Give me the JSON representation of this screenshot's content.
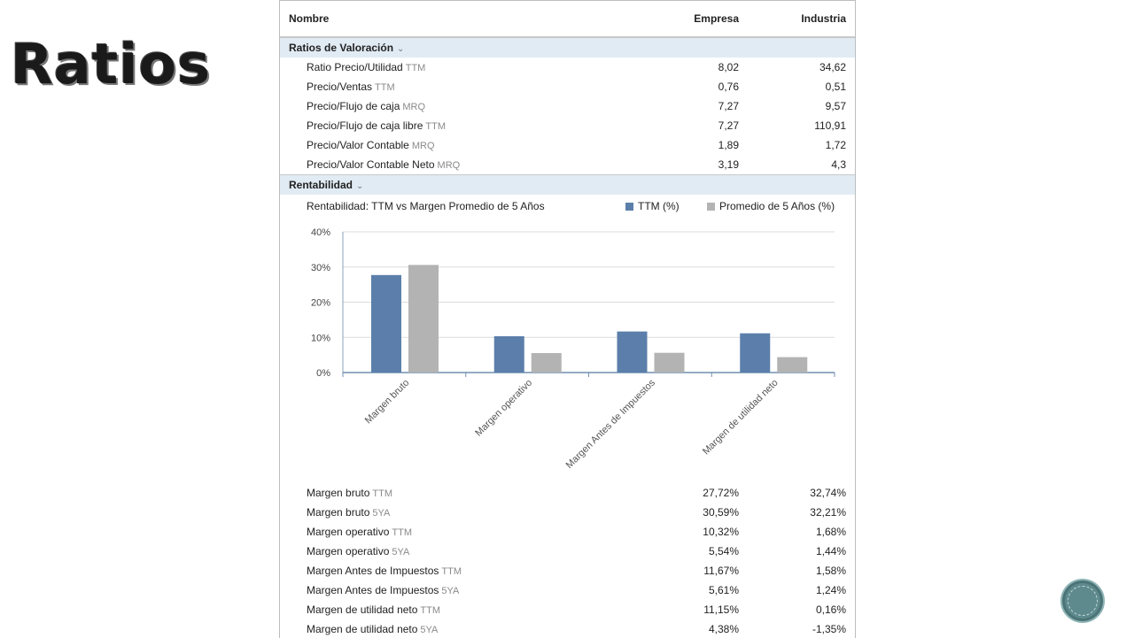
{
  "slide": {
    "title": "Ratios"
  },
  "header": {
    "name_col": "Nombre",
    "company_col": "Empresa",
    "industry_col": "Industria"
  },
  "valuation": {
    "title": "Ratios de Valoración",
    "rows": [
      {
        "label": "Ratio Precio/Utilidad",
        "suffix": "TTM",
        "company": "8,02",
        "industry": "34,62"
      },
      {
        "label": "Precio/Ventas",
        "suffix": "TTM",
        "company": "0,76",
        "industry": "0,51"
      },
      {
        "label": "Precio/Flujo de caja",
        "suffix": "MRQ",
        "company": "7,27",
        "industry": "9,57"
      },
      {
        "label": "Precio/Flujo de caja libre",
        "suffix": "TTM",
        "company": "7,27",
        "industry": "110,91"
      },
      {
        "label": "Precio/Valor Contable",
        "suffix": "MRQ",
        "company": "1,89",
        "industry": "1,72"
      },
      {
        "label": "Precio/Valor Contable Neto",
        "suffix": "MRQ",
        "company": "3,19",
        "industry": "4,3"
      }
    ]
  },
  "profitability": {
    "title": "Rentabilidad",
    "chart_title": "Rentabilidad: TTM vs Margen Promedio de 5 Años",
    "rows": [
      {
        "label": "Margen bruto",
        "suffix": "TTM",
        "company": "27,72%",
        "industry": "32,74%"
      },
      {
        "label": "Margen bruto",
        "suffix": "5YA",
        "company": "30,59%",
        "industry": "32,21%"
      },
      {
        "label": "Margen operativo",
        "suffix": "TTM",
        "company": "10,32%",
        "industry": "1,68%"
      },
      {
        "label": "Margen operativo",
        "suffix": "5YA",
        "company": "5,54%",
        "industry": "1,44%"
      },
      {
        "label": "Margen Antes de Impuestos",
        "suffix": "TTM",
        "company": "11,67%",
        "industry": "1,58%"
      },
      {
        "label": "Margen Antes de Impuestos",
        "suffix": "5YA",
        "company": "5,61%",
        "industry": "1,24%"
      },
      {
        "label": "Margen de utilidad neto",
        "suffix": "TTM",
        "company": "11,15%",
        "industry": "0,16%"
      },
      {
        "label": "Margen de utilidad neto",
        "suffix": "5YA",
        "company": "4,38%",
        "industry": "-1,35%"
      }
    ]
  },
  "chart_data": {
    "type": "bar",
    "title": "Rentabilidad: TTM vs Margen Promedio de 5 Años",
    "categories": [
      "Margen bruto",
      "Margen operativo",
      "Margen Antes de Impuestos",
      "Margen de utilidad neto"
    ],
    "series": [
      {
        "name": "TTM (%)",
        "color": "#5b7faa",
        "values": [
          27.72,
          10.32,
          11.67,
          11.15
        ]
      },
      {
        "name": "Promedio de 5 Años (%)",
        "color": "#b3b3b3",
        "values": [
          30.59,
          5.54,
          5.61,
          4.38
        ]
      }
    ],
    "yticks": [
      "0%",
      "10%",
      "20%",
      "30%",
      "40%"
    ],
    "ylim": [
      0,
      40
    ],
    "grid": true,
    "legend": "top-right"
  }
}
